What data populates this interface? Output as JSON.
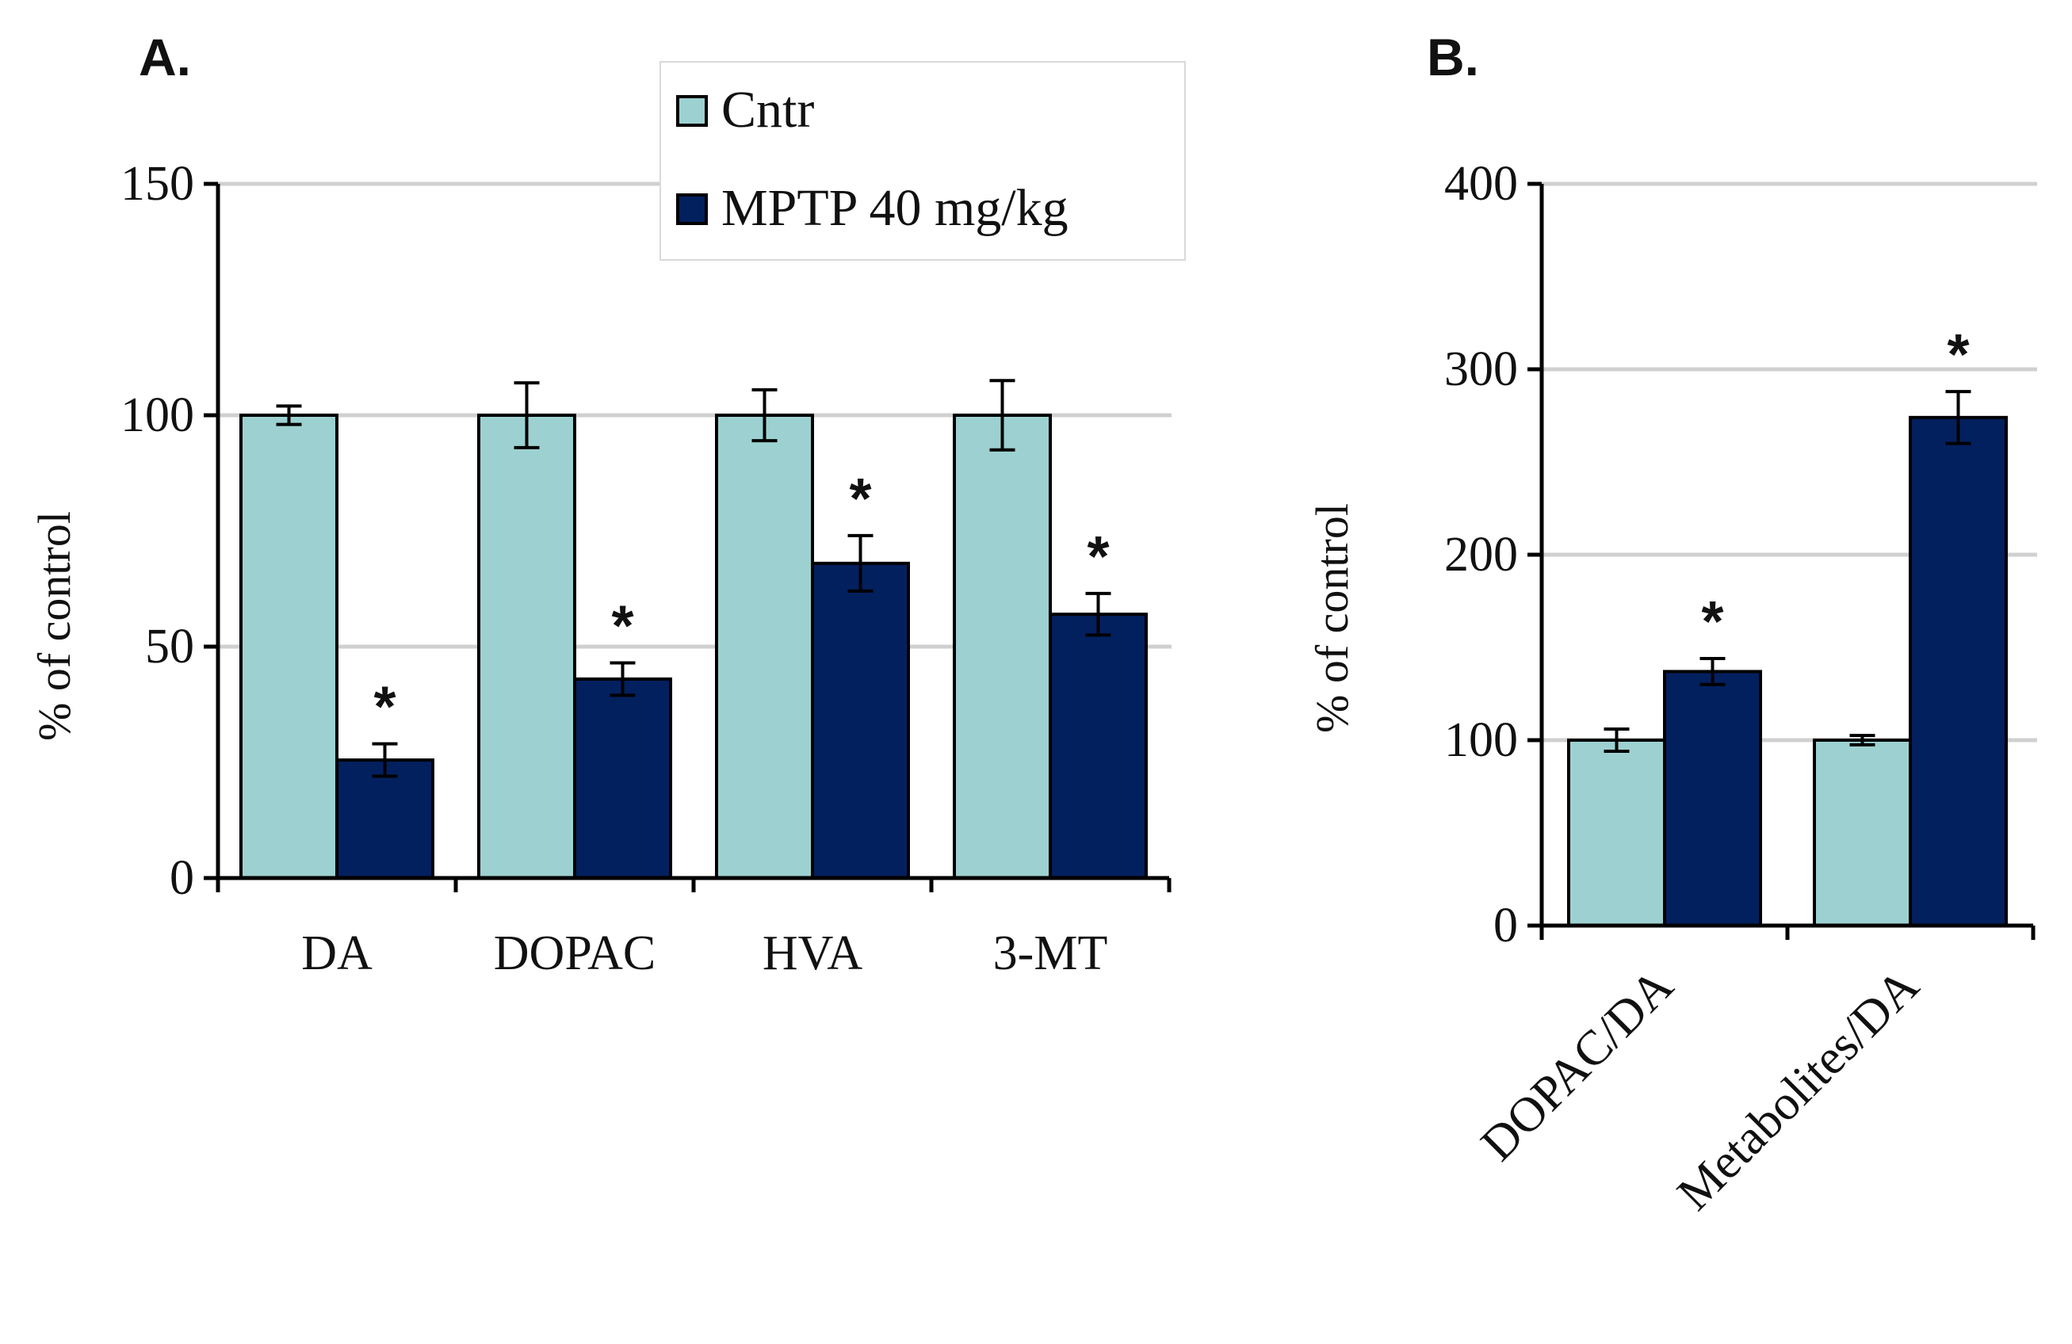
{
  "chart_data": [
    {
      "panel": "A.",
      "type": "bar",
      "categories": [
        "DA",
        "DOPAC",
        "HVA",
        "3-MT"
      ],
      "series": [
        {
          "name": "Cntr",
          "color": "#9dd1d1",
          "values": [
            100,
            100,
            100,
            100
          ],
          "errors": [
            2,
            7,
            5.5,
            7.5
          ]
        },
        {
          "name": "MPTP 40 mg/kg",
          "color": "#03205e",
          "values": [
            25.5,
            43,
            68,
            57
          ],
          "errors": [
            3.5,
            3.5,
            6,
            4.5
          ]
        }
      ],
      "significance": [
        false,
        true
      ],
      "significance_marker": "*",
      "ylabel": "% of control",
      "ylim": [
        0,
        150
      ],
      "yticks": [
        0,
        50,
        100,
        150
      ],
      "grid": true,
      "legend": {
        "position": "top-right",
        "entries": [
          "Cntr",
          "MPTP 40 mg/kg"
        ]
      }
    },
    {
      "panel": "B.",
      "type": "bar",
      "categories": [
        "DOPAC/DA",
        "Metabolites/DA"
      ],
      "series": [
        {
          "name": "Cntr",
          "color": "#9dd1d1",
          "values": [
            100,
            100
          ],
          "errors": [
            6,
            2.5
          ]
        },
        {
          "name": "MPTP 40 mg/kg",
          "color": "#03205e",
          "values": [
            137,
            274
          ],
          "errors": [
            7,
            14
          ]
        }
      ],
      "significance": [
        false,
        true
      ],
      "significance_marker": "*",
      "ylabel": "% of control",
      "ylim": [
        0,
        400
      ],
      "yticks": [
        0,
        100,
        200,
        300,
        400
      ],
      "grid": true,
      "xtick_rotation": -45
    }
  ]
}
